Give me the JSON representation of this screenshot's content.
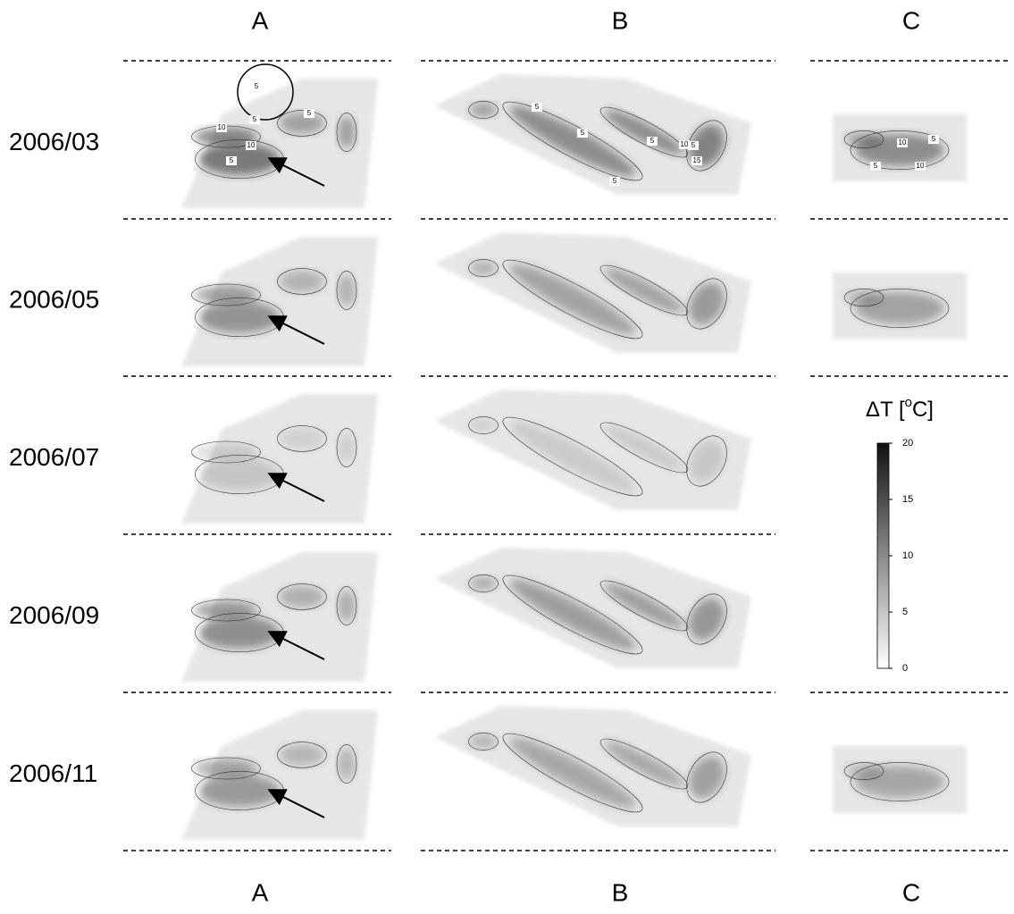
{
  "columns_top": [
    "A",
    "B",
    "C"
  ],
  "columns_bottom": [
    "A",
    "B",
    "C"
  ],
  "rows": [
    "2006/03",
    "2006/05",
    "2006/07",
    "2006/09",
    "2006/11"
  ],
  "colorbar": {
    "title": "ΔT [",
    "title_sup": "o",
    "title_end": "C]",
    "range": [
      0,
      20
    ],
    "ticks": [
      0,
      5,
      10,
      15,
      20
    ]
  },
  "contour_labels": {
    "A_2006_03": [
      5,
      10,
      5,
      5,
      10,
      5
    ],
    "B_2006_03": [
      5,
      5,
      5,
      10,
      5,
      15,
      5
    ],
    "C_2006_03": [
      5,
      10,
      5,
      10
    ]
  }
}
